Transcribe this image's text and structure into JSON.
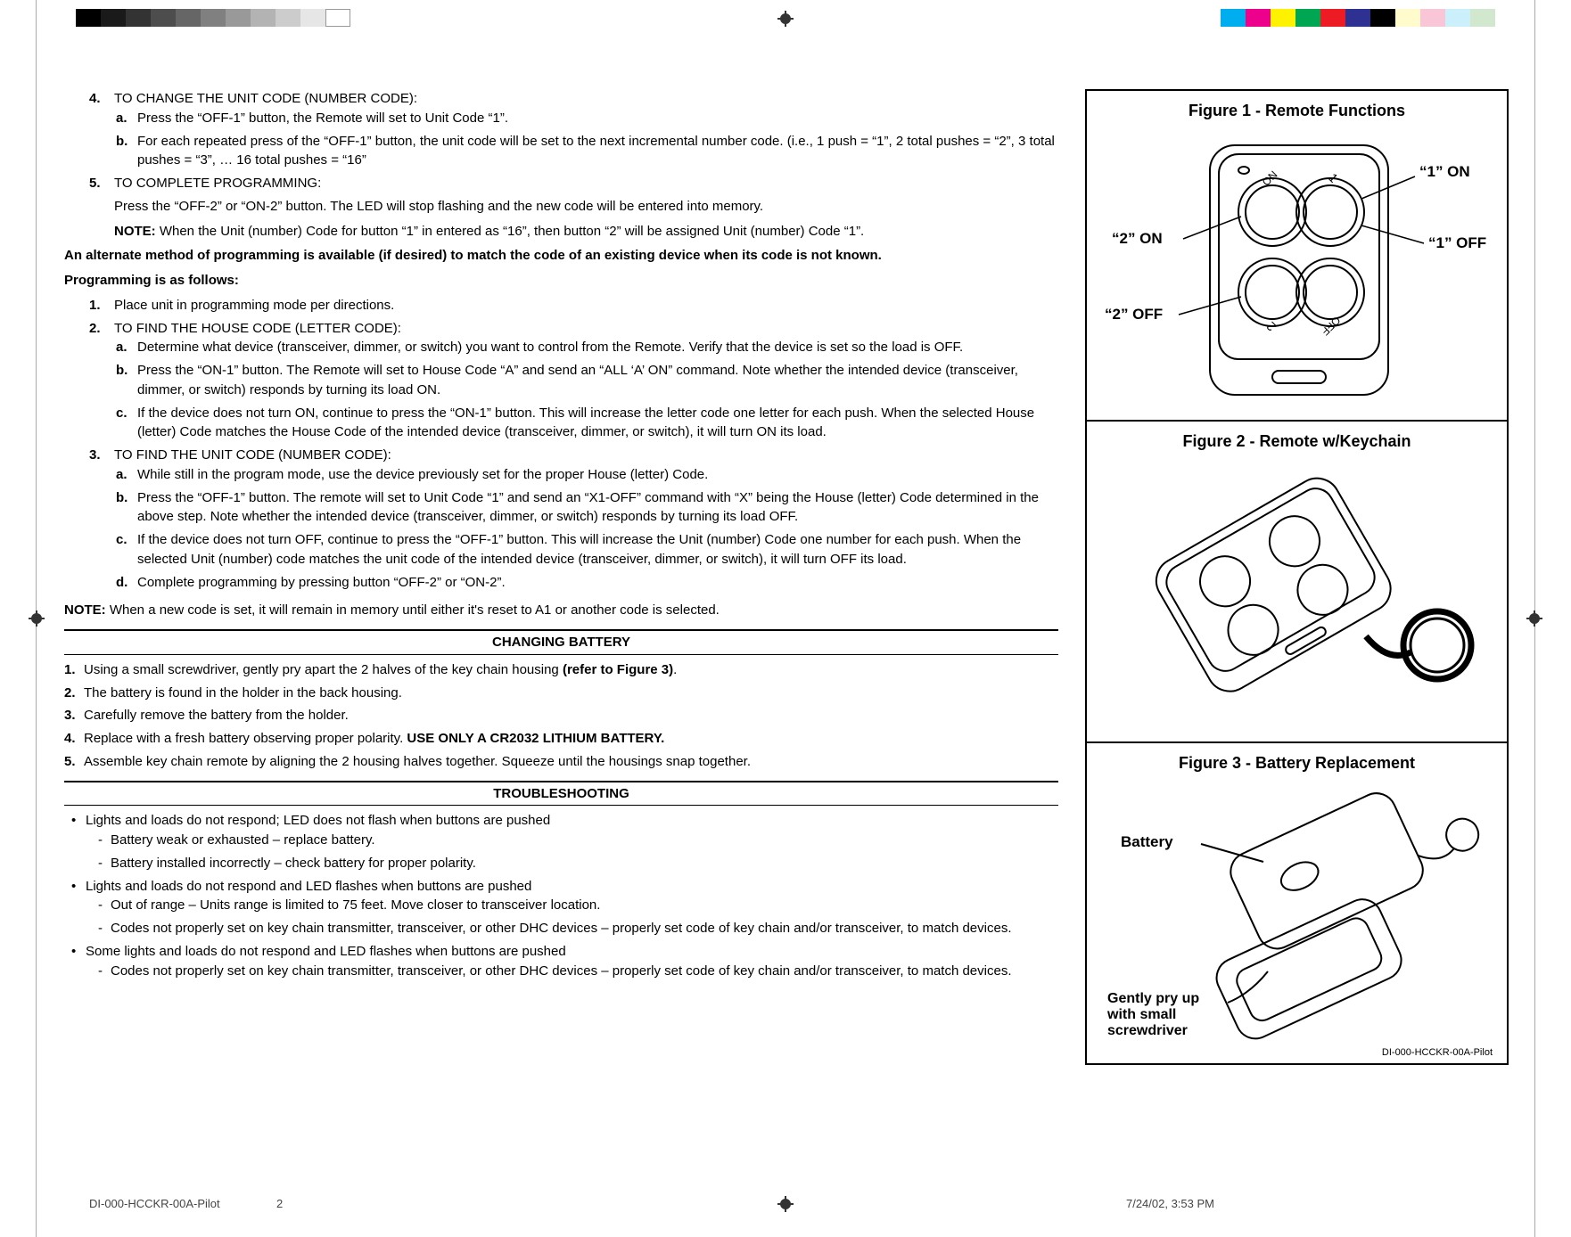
{
  "regmarks": {
    "left_colors": [
      "#000000",
      "#1a1a1a",
      "#333333",
      "#4d4d4d",
      "#666666",
      "#808080",
      "#999999",
      "#b3b3b3",
      "#cccccc",
      "#e6e6e6",
      "#ffffff"
    ],
    "right_colors": [
      "#00aeef",
      "#ec008c",
      "#fff200",
      "#00a651",
      "#ed1c24",
      "#2e3192",
      "#000000",
      "#fffbcc",
      "#f9c6d7",
      "#cceffc",
      "#d1e8ce"
    ]
  },
  "main": {
    "item4": {
      "num": "4.",
      "title": "TO CHANGE THE UNIT CODE (NUMBER CODE):",
      "a_let": "a.",
      "a": "Press the “OFF-1” button, the Remote will set to Unit Code “1”.",
      "b_let": "b.",
      "b": "For each repeated press of the “OFF-1” button, the unit code will be set to the next incremental number code.  (i.e., 1 push = “1”, 2 total pushes = “2”, 3 total pushes = “3”, … 16 total pushes = “16”"
    },
    "item5": {
      "num": "5.",
      "title": "TO COMPLETE PROGRAMMING:",
      "line1": "Press the “OFF-2” or “ON-2” button. The LED will stop flashing and the new code will be entered into memory.",
      "note_label": "NOTE:",
      "note": " When the Unit (number) Code for button “1” in entered as “16”, then button “2” will be assigned Unit (number) Code “1”."
    },
    "alt_hdr": "An alternate method of programming is available (if desired) to match the code of an existing device when its code is not known.",
    "prog_hdr": "Programming is as follows:",
    "p1": {
      "num": "1.",
      "text": "Place unit in programming mode per directions."
    },
    "p2": {
      "num": "2.",
      "title": "TO FIND THE HOUSE CODE (LETTER CODE):",
      "a_let": "a.",
      "a": "Determine what device (transceiver, dimmer, or switch) you want to control from the Remote. Verify that the device is set so the load is OFF.",
      "b_let": "b.",
      "b": "Press the “ON-1” button. The Remote will set to House Code “A” and send an “ALL ‘A’ ON” command. Note whether the intended device (transceiver, dimmer, or switch) responds by turning its load ON.",
      "c_let": "c.",
      "c": "If the device does not turn ON, continue to press the “ON-1” button. This will increase the letter code one letter for each push. When the selected House (letter) Code matches the House Code of the intended device (transceiver, dimmer, or switch), it will turn ON its load."
    },
    "p3": {
      "num": "3.",
      "title": "TO FIND THE UNIT CODE (NUMBER CODE):",
      "a_let": "a.",
      "a": "While still in the program mode, use the device previously set for the proper House (letter) Code.",
      "b_let": "b.",
      "b": "Press the “OFF-1” button. The remote will set to Unit Code “1” and send an “X1-OFF” command with “X” being the House (letter) Code determined in the above step. Note whether the intended device (transceiver, dimmer, or switch) responds by turning its load OFF.",
      "c_let": "c.",
      "c": "If the device does not turn OFF, continue to press the “OFF-1” button. This will increase the Unit (number) Code one number for each push. When the selected Unit (number) code matches the unit code of the intended device (transceiver, dimmer, or switch), it will turn OFF its load.",
      "d_let": "d.",
      "d": "Complete programming by pressing button “OFF-2” or “ON-2”."
    },
    "final_note_label": "NOTE:",
    "final_note": " When a new code is set, it will remain in memory until either it's reset to A1 or another code is selected."
  },
  "battery": {
    "hdr": "CHANGING BATTERY",
    "i1_num": "1.",
    "i1_a": "Using a small screwdriver, gently pry apart the 2 halves of the key chain housing ",
    "i1_b": "(refer to Figure 3)",
    "i1_c": ".",
    "i2_num": "2.",
    "i2": "The battery is found in the holder in the back housing.",
    "i3_num": "3.",
    "i3": "Carefully remove the battery from the holder.",
    "i4_num": "4.",
    "i4_a": "Replace with a fresh battery observing proper polarity. ",
    "i4_b": "USE ONLY A CR2032 LITHIUM BATTERY.",
    "i5_num": "5.",
    "i5": "Assemble key chain remote by aligning the 2 housing halves together. Squeeze until the housings snap together."
  },
  "trouble": {
    "hdr": "TROUBLESHOOTING",
    "b1": "Lights and loads do not respond; LED does not flash when buttons are pushed",
    "b1_d1": "Battery weak or exhausted – replace battery.",
    "b1_d2": "Battery installed incorrectly – check battery for proper polarity.",
    "b2": "Lights and loads do not respond and LED flashes when buttons are pushed",
    "b2_d1": "Out of range – Units range is limited to 75 feet. Move closer to transceiver location.",
    "b2_d2": "Codes not properly set on key chain transmitter, transceiver, or other DHC devices – properly set code of key chain and/or transceiver, to match devices.",
    "b3": "Some lights and loads do not respond and LED flashes when buttons are pushed",
    "b3_d1": "Codes not properly set on key chain transmitter, transceiver, or other DHC devices – properly set code of key chain and/or transceiver, to match devices."
  },
  "figures": {
    "f1": {
      "title": "Figure 1 - Remote Functions",
      "lbl_1on": "“1” ON",
      "lbl_1off": "“1” OFF",
      "lbl_2on": "“2” ON",
      "lbl_2off": "“2” OFF",
      "t_on": "ON",
      "t_1": "1",
      "t_2": "2",
      "t_off": "OFF"
    },
    "f2": {
      "title": "Figure 2 - Remote w/Keychain"
    },
    "f3": {
      "title": "Figure 3 - Battery Replacement",
      "lbl_battery": "Battery",
      "lbl_pry": "Gently pry up with small screwdriver"
    }
  },
  "footer": {
    "docid": "DI-000-HCCKR-00A-Pilot",
    "page": "2",
    "date": "7/24/02, 3:53 PM",
    "docid_fig": "DI-000-HCCKR-00A-Pilot"
  }
}
